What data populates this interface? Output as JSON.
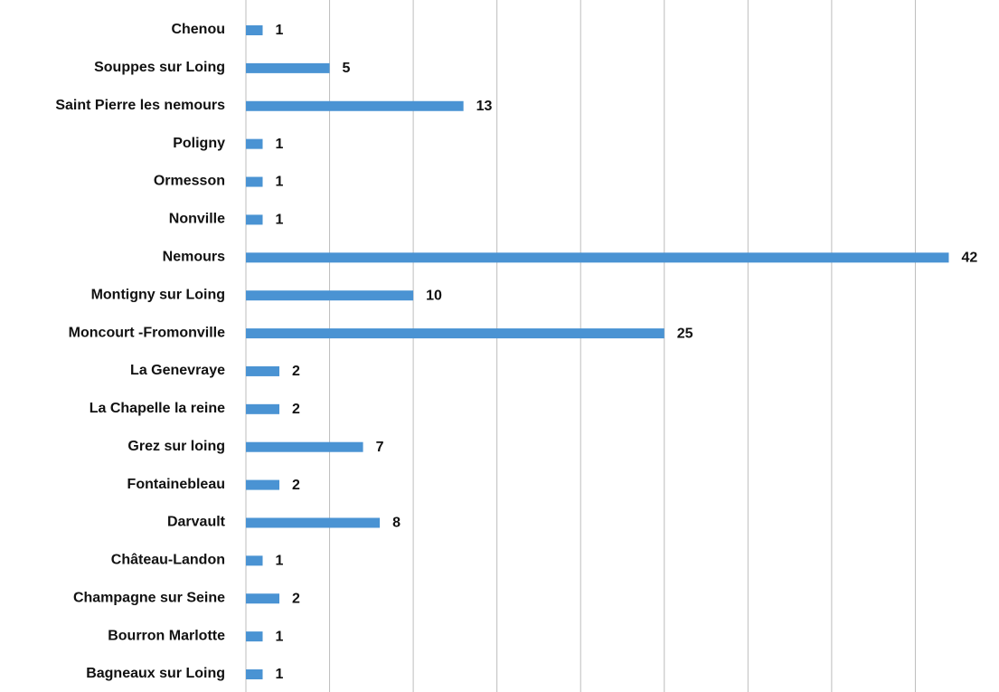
{
  "chart_data": {
    "type": "barh",
    "categories": [
      "Chenou",
      "Souppes sur Loing",
      "Saint Pierre les nemours",
      "Poligny",
      "Ormesson",
      "Nonville",
      "Nemours",
      "Montigny sur Loing",
      "Moncourt -Fromonville",
      "La Genevraye",
      "La Chapelle la reine",
      "Grez sur loing",
      "Fontainebleau",
      "Darvault",
      "Château-Landon",
      "Champagne sur Seine",
      "Bourron Marlotte",
      "Bagneaux sur Loing"
    ],
    "values": [
      1,
      5,
      13,
      1,
      1,
      1,
      42,
      10,
      25,
      2,
      2,
      7,
      2,
      8,
      1,
      2,
      1,
      1
    ],
    "color": "#4a93d3",
    "xlim": [
      0,
      45
    ],
    "xticks": [
      0,
      5,
      10,
      15,
      20,
      25,
      30,
      35,
      40
    ],
    "grid": true
  }
}
